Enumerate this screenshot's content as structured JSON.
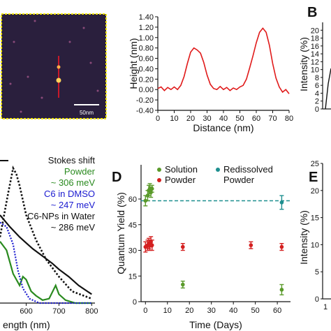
{
  "panels": {
    "afm": "",
    "b": "B",
    "d": "D",
    "e": "E"
  },
  "afm_image": {
    "scale_bar_label": "50nm"
  },
  "chart_data": [
    {
      "id": "height-profile",
      "type": "line",
      "xlabel": "Distance (nm)",
      "ylabel": "Height (nm)",
      "xlim": [
        0,
        80
      ],
      "ylim": [
        -0.4,
        1.4
      ],
      "xticks": [
        "0",
        "10",
        "20",
        "30",
        "40",
        "50",
        "60",
        "70",
        "80"
      ],
      "yticks": [
        "-0.40",
        "-0.20",
        "0.00",
        "0.20",
        "0.40",
        "0.60",
        "0.80",
        "1.00",
        "1.20",
        "1.40"
      ],
      "series": [
        {
          "color": "#e01a1a",
          "x": [
            0,
            2,
            4,
            6,
            8,
            10,
            12,
            14,
            16,
            18,
            20,
            22,
            24,
            26,
            28,
            30,
            32,
            34,
            36,
            38,
            40,
            42,
            44,
            46,
            48,
            50,
            52,
            54,
            56,
            58,
            60,
            62,
            64,
            66,
            68,
            70,
            72,
            74,
            76,
            78,
            80
          ],
          "y": [
            0.02,
            0.05,
            -0.02,
            0.04,
            0.0,
            0.05,
            0.0,
            0.08,
            0.25,
            0.5,
            0.72,
            0.8,
            0.76,
            0.7,
            0.52,
            0.28,
            0.1,
            0.02,
            0.0,
            0.06,
            0.0,
            0.04,
            -0.02,
            0.03,
            0.0,
            0.05,
            0.08,
            0.2,
            0.42,
            0.65,
            0.9,
            1.1,
            1.18,
            1.1,
            0.85,
            0.5,
            0.22,
            0.05,
            -0.05,
            0.0,
            -0.08
          ]
        }
      ]
    },
    {
      "id": "panel-b",
      "type": "line",
      "ylabel": "Intensity (%)",
      "ylim": [
        0,
        22
      ],
      "yticks": [
        "0",
        "2",
        "4",
        "6",
        "8",
        "10",
        "12",
        "14",
        "16",
        "18",
        "20"
      ]
    },
    {
      "id": "spectra",
      "type": "line",
      "xlabel": "ength (nm)",
      "xticks": [
        "600",
        "700",
        "800"
      ],
      "xlim": [
        520,
        810
      ],
      "ylim": [
        0,
        1
      ],
      "legend": [
        {
          "text": "Stokes shift",
          "color": "#111111"
        },
        {
          "text": "Powder",
          "color": "#2a8a1f"
        },
        {
          "text": "~ 306 meV",
          "color": "#2a8a1f"
        },
        {
          "text": "C6 in DMSO",
          "color": "#1a1ad0"
        },
        {
          "text": "~ 247 meV",
          "color": "#1a1ad0"
        },
        {
          "text": "C6-NPs in Water",
          "color": "#111111"
        },
        {
          "text": "~ 286 meV",
          "color": "#111111"
        }
      ],
      "series": [
        {
          "color": "#111111",
          "x": [
            520,
            550,
            580,
            600,
            620,
            650,
            680,
            700,
            730,
            760,
            800
          ],
          "y": [
            0.6,
            0.52,
            0.45,
            0.41,
            0.37,
            0.32,
            0.27,
            0.23,
            0.18,
            0.12,
            0.06
          ]
        },
        {
          "color": "#2a8a1f",
          "x": [
            520,
            540,
            560,
            580,
            590,
            600,
            615,
            630,
            650,
            670,
            690,
            700,
            720,
            750,
            800
          ],
          "y": [
            0.42,
            0.36,
            0.2,
            0.12,
            0.18,
            0.16,
            0.08,
            0.05,
            0.02,
            0.03,
            0.12,
            0.06,
            0.02,
            0.0,
            0.0
          ]
        },
        {
          "color": "#1a1ad0",
          "x": [
            520,
            540,
            560,
            575,
            590,
            610,
            640,
            700,
            800
          ],
          "y": [
            0.55,
            0.52,
            0.4,
            0.22,
            0.1,
            0.03,
            0.0,
            0.0,
            0.0
          ]
        },
        {
          "color": "#111111",
          "x": [
            520,
            545,
            560,
            570,
            580,
            600,
            630,
            660,
            700,
            740,
            800
          ],
          "y": [
            0.45,
            0.75,
            0.92,
            0.88,
            0.8,
            0.6,
            0.43,
            0.3,
            0.18,
            0.08,
            0.03
          ],
          "dashed": true
        }
      ]
    },
    {
      "id": "quantum-yield",
      "type": "scatter",
      "xlabel": "Time (Days)",
      "ylabel": "Quantum Yield (%)",
      "xlim": [
        -2,
        66
      ],
      "ylim": [
        0,
        80
      ],
      "xticks": [
        "0",
        "10",
        "20",
        "30",
        "40",
        "50",
        "60"
      ],
      "yticks": [
        "0",
        "15",
        "30",
        "45",
        "60"
      ],
      "legend_placement": "top",
      "reference_line": {
        "y": 59,
        "color": "#1e8f8f"
      },
      "series": [
        {
          "name": "Solution",
          "color": "#5a9a2a",
          "x": [
            0,
            1,
            1.5,
            2,
            2.5,
            3,
            17,
            62
          ],
          "y": [
            59,
            62,
            65,
            66,
            64,
            66,
            10,
            7
          ],
          "err": [
            3,
            3,
            3,
            3,
            3,
            2,
            2,
            3
          ]
        },
        {
          "name": "Powder",
          "color": "#d42020",
          "x": [
            0,
            1,
            1.5,
            2,
            2.5,
            3,
            17,
            48,
            62
          ],
          "y": [
            32,
            33,
            34,
            33,
            35,
            33,
            32,
            33,
            32
          ],
          "err": [
            3,
            3,
            3,
            3,
            3,
            3,
            2,
            2,
            2
          ]
        },
        {
          "name": "Redissolved Powder",
          "color": "#1e8f8f",
          "x": [
            62
          ],
          "y": [
            58
          ],
          "err": [
            4
          ]
        }
      ]
    },
    {
      "id": "panel-e",
      "type": "line",
      "ylabel": "Intensity (%)",
      "ylim": [
        0,
        25
      ],
      "yticks": [
        "0",
        "5",
        "10",
        "15",
        "20",
        "25"
      ],
      "xticks": [
        "1"
      ]
    }
  ]
}
